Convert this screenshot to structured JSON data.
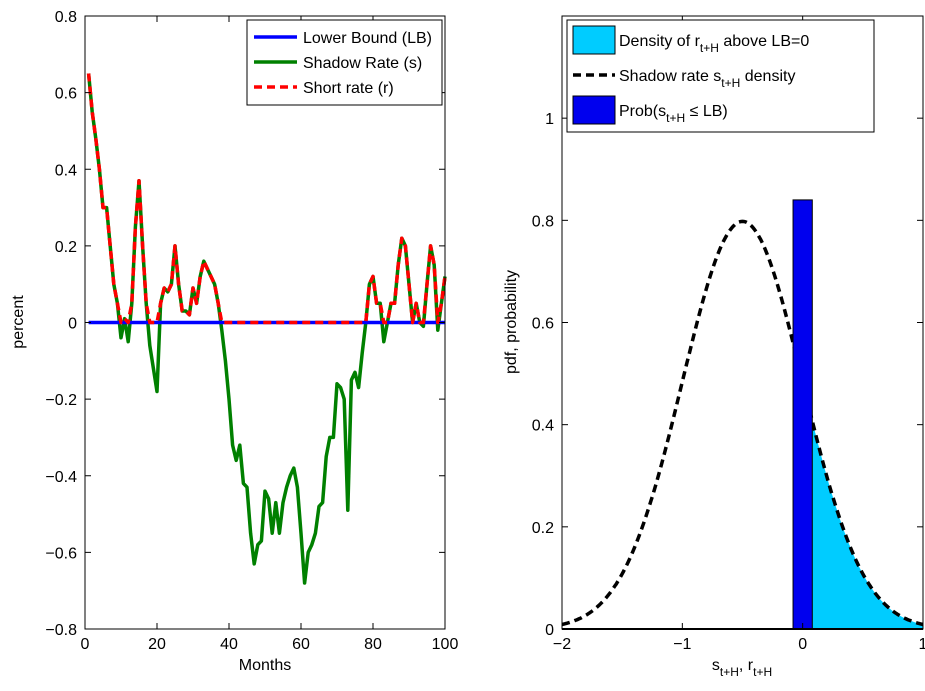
{
  "chart_data": [
    {
      "type": "line",
      "xlabel": "Months",
      "ylabel": "percent",
      "xlim": [
        0,
        100
      ],
      "ylim": [
        -0.8,
        0.8
      ],
      "x_ticks": [
        0,
        20,
        40,
        60,
        80,
        100
      ],
      "y_ticks": [
        -0.8,
        -0.6,
        -0.4,
        -0.2,
        0,
        0.2,
        0.4,
        0.6,
        0.8
      ],
      "x_tick_labels": [
        "0",
        "20",
        "40",
        "60",
        "80",
        "100"
      ],
      "y_tick_labels": [
        "−0.8",
        "−0.6",
        "−0.4",
        "−0.2",
        "0",
        "0.2",
        "0.4",
        "0.6",
        "0.8"
      ],
      "legend_position": "top-right",
      "grid": false,
      "series": [
        {
          "name": "Lower Bound (LB)",
          "color": "#0000ff",
          "style": "solid",
          "x": [
            1,
            100
          ],
          "y": [
            0,
            0
          ]
        },
        {
          "name": "Shadow Rate (s)",
          "color": "#008000",
          "style": "solid",
          "x": [
            1,
            2,
            3,
            4,
            5,
            6,
            7,
            8,
            9,
            10,
            11,
            12,
            13,
            14,
            15,
            16,
            17,
            18,
            19,
            20,
            21,
            22,
            23,
            24,
            25,
            26,
            27,
            28,
            29,
            30,
            31,
            32,
            33,
            34,
            35,
            36,
            37,
            38,
            39,
            40,
            41,
            42,
            43,
            44,
            45,
            46,
            47,
            48,
            49,
            50,
            51,
            52,
            53,
            54,
            55,
            56,
            57,
            58,
            59,
            60,
            61,
            62,
            63,
            64,
            65,
            66,
            67,
            68,
            69,
            70,
            71,
            72,
            73,
            74,
            75,
            76,
            77,
            78,
            79,
            80,
            81,
            82,
            83,
            84,
            85,
            86,
            87,
            88,
            89,
            90,
            91,
            92,
            93,
            94,
            95,
            96,
            97,
            98,
            99,
            100
          ],
          "y": [
            0.65,
            0.55,
            0.48,
            0.4,
            0.3,
            0.3,
            0.2,
            0.1,
            0.05,
            -0.04,
            0.01,
            -0.05,
            0.05,
            0.25,
            0.37,
            0.2,
            0.05,
            -0.06,
            -0.12,
            -0.18,
            0.05,
            0.09,
            0.08,
            0.1,
            0.2,
            0.1,
            0.03,
            0.03,
            0.02,
            0.09,
            0.05,
            0.12,
            0.16,
            0.14,
            0.12,
            0.1,
            0.05,
            -0.02,
            -0.1,
            -0.2,
            -0.32,
            -0.36,
            -0.32,
            -0.42,
            -0.43,
            -0.55,
            -0.63,
            -0.58,
            -0.57,
            -0.44,
            -0.46,
            -0.55,
            -0.47,
            -0.55,
            -0.47,
            -0.43,
            -0.4,
            -0.38,
            -0.43,
            -0.55,
            -0.68,
            -0.6,
            -0.58,
            -0.55,
            -0.48,
            -0.47,
            -0.35,
            -0.3,
            -0.3,
            -0.16,
            -0.17,
            -0.2,
            -0.49,
            -0.15,
            -0.13,
            -0.17,
            -0.08,
            0.0,
            0.1,
            0.12,
            0.05,
            0.05,
            -0.05,
            0.0,
            0.05,
            0.05,
            0.15,
            0.22,
            0.2,
            0.1,
            0.0,
            0.05,
            0.0,
            -0.01,
            0.1,
            0.2,
            0.15,
            -0.02,
            0.05,
            0.12
          ]
        },
        {
          "name": "Short rate (r)",
          "color": "#ff0000",
          "style": "dashed",
          "x": [
            1,
            2,
            3,
            4,
            5,
            6,
            7,
            8,
            9,
            10,
            11,
            12,
            13,
            14,
            15,
            16,
            17,
            18,
            19,
            20,
            21,
            22,
            23,
            24,
            25,
            26,
            27,
            28,
            29,
            30,
            31,
            32,
            33,
            34,
            35,
            36,
            37,
            38,
            39,
            40,
            41,
            42,
            43,
            44,
            45,
            46,
            47,
            48,
            49,
            50,
            51,
            52,
            53,
            54,
            55,
            56,
            57,
            58,
            59,
            60,
            61,
            62,
            63,
            64,
            65,
            66,
            67,
            68,
            69,
            70,
            71,
            72,
            73,
            74,
            75,
            76,
            77,
            78,
            79,
            80,
            81,
            82,
            83,
            84,
            85,
            86,
            87,
            88,
            89,
            90,
            91,
            92,
            93,
            94,
            95,
            96,
            97,
            98,
            99,
            100
          ],
          "y": [
            0.65,
            0.55,
            0.48,
            0.4,
            0.3,
            0.3,
            0.2,
            0.1,
            0.05,
            0.0,
            0.01,
            0.0,
            0.05,
            0.25,
            0.37,
            0.2,
            0.05,
            0,
            0,
            0,
            0.05,
            0.09,
            0.08,
            0.1,
            0.2,
            0.1,
            0.03,
            0.03,
            0.02,
            0.09,
            0.05,
            0.12,
            0.16,
            0.14,
            0.12,
            0.1,
            0.05,
            0,
            0,
            0,
            0,
            0,
            0,
            0,
            0,
            0,
            0,
            0,
            0,
            0,
            0,
            0,
            0,
            0,
            0,
            0,
            0,
            0,
            0,
            0,
            0,
            0,
            0,
            0,
            0,
            0,
            0,
            0,
            0,
            0,
            0,
            0,
            0,
            0,
            0,
            0,
            0,
            0.0,
            0.1,
            0.12,
            0.05,
            0.05,
            0,
            0.0,
            0.05,
            0.05,
            0.15,
            0.22,
            0.2,
            0.1,
            0.0,
            0.05,
            0.0,
            0,
            0.1,
            0.2,
            0.15,
            0,
            0.05,
            0.12
          ]
        }
      ]
    },
    {
      "type": "area",
      "xlabel": "s_{t+H}, r_{t+H}",
      "ylabel": "pdf, probability",
      "xlim": [
        -2,
        1
      ],
      "ylim": [
        0,
        1.2
      ],
      "x_ticks": [
        -2,
        -1,
        0,
        1
      ],
      "y_ticks": [
        0,
        0.2,
        0.4,
        0.6,
        0.8,
        1
      ],
      "x_tick_labels": [
        "−2",
        "−1",
        "0",
        "1"
      ],
      "y_tick_labels": [
        "0",
        "0.2",
        "0.4",
        "0.6",
        "0.8",
        "1"
      ],
      "legend_position": "top",
      "grid": false,
      "lb": 0,
      "normal_mean": -0.5,
      "normal_sd": 0.5,
      "series": [
        {
          "name": "Density of r_{t+H} above  LB=0",
          "legend_main": "Density of r",
          "legend_sub": "t+H",
          "legend_tail": " above  LB=0",
          "color": "#00ccff",
          "kind": "filled-area",
          "x_range": [
            0.08,
            1
          ]
        },
        {
          "name": "Shadow rate s_{t+H} density",
          "legend_main": "Shadow rate s",
          "legend_sub": "t+H",
          "legend_tail": " density",
          "color": "#000000",
          "kind": "dashed-curve",
          "x_range": [
            -2,
            1
          ]
        },
        {
          "name": "Prob(s_{t+H} ≤ LB)",
          "legend_main": "Prob(s",
          "legend_sub": "t+H",
          "legend_tail": " ≤ LB)",
          "color": "#0000ee",
          "kind": "bar",
          "x_range": [
            -0.08,
            0.08
          ],
          "value": 0.84
        }
      ]
    }
  ],
  "axis_text": {
    "left_xlabel": "Months",
    "left_ylabel": "percent",
    "right_ylabel": "pdf, probability",
    "right_xlabel_main_s": "s",
    "right_xlabel_sub_1": "t+H",
    "right_xlabel_mid": ", r",
    "right_xlabel_sub_2": "t+H"
  }
}
